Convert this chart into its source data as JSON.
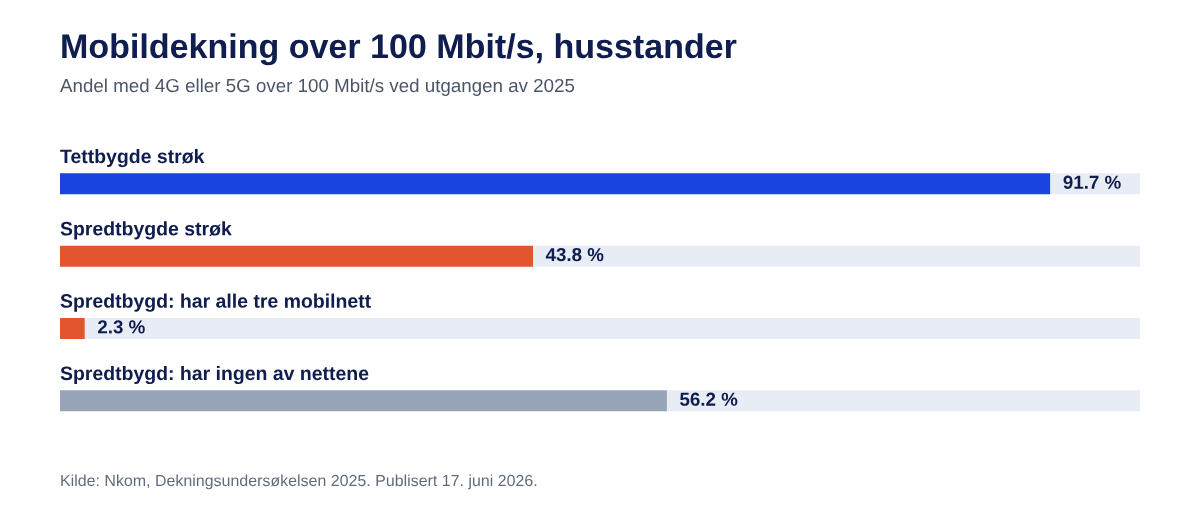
{
  "chart_data": {
    "type": "bar",
    "orientation": "horizontal",
    "stacked": true,
    "title": "Mobildekning over 100 Mbit/s, husstander",
    "subtitle": "Andel med 4G eller 5G over 100 Mbit/s ved utgangen av 2025",
    "categories": [
      "Tettbygde strøk",
      "Spredtbygde strøk",
      "Spredtbygd: har alle tre mobilnett",
      "Spredtbygd: har ingen av nettene"
    ],
    "series": [
      {
        "colors": [
          "#1a44e0",
          "#e2552f",
          "#e2552f",
          "#97a4b8"
        ],
        "values": [
          91.7,
          43.8,
          2.3,
          56.2
        ],
        "value_labels": [
          "91.7 %",
          "43.8 %",
          "2.3 %",
          "56.2 %"
        ]
      },
      {
        "color": "#e8ecf5",
        "values": [
          8.3,
          56.2,
          97.7,
          43.8
        ]
      }
    ],
    "xlim": [
      0,
      100
    ],
    "tick_labels": "y",
    "annotations": [
      "Kilde: Nkom, Dekningsundersøkelsen 2025. Publisert 17. juni 2026."
    ]
  }
}
